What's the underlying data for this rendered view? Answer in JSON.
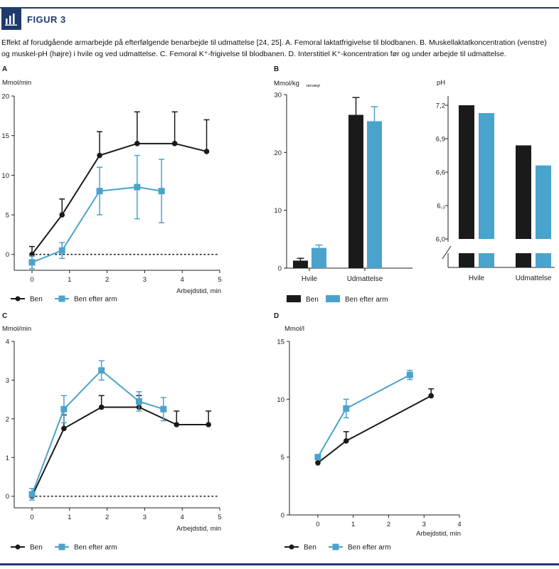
{
  "figure": {
    "title": "FIGUR 3",
    "caption": "Effekt af forudgående armarbejde på efterfølgende benarbejde til udmattelse [24, 25]. A. Femoral laktatfrigivelse til blodbanen. B. Muskellaktatkoncentration (venstre) og muskel-pH (højre) i hvile og ved udmattelse. C. Femoral K⁺-frigivelse til blodbanen. D. Interstitiel K⁺-koncentration før og under arbejde til udmattelse.",
    "colors": {
      "ben": "#1a1a1a",
      "ben_efter_arm": "#4aa3cc",
      "accent": "#1f3a6e"
    },
    "icon": "bar-chart-icon"
  },
  "chart_data": [
    {
      "panel": "A",
      "type": "line",
      "ylabel": "Mmol/min",
      "xlabel": "Arbejdstid, min",
      "xlim": [
        0,
        5
      ],
      "ylim": [
        -2,
        20
      ],
      "xticks": [
        0,
        1,
        2,
        3,
        4,
        5
      ],
      "yticks": [
        0,
        5,
        10,
        15,
        20
      ],
      "zero_line": "dotted",
      "series": [
        {
          "name": "Ben",
          "marker": "circle",
          "x": [
            0,
            0.8,
            1.8,
            2.8,
            3.8,
            4.65
          ],
          "y": [
            0,
            5,
            12.5,
            14,
            14,
            13
          ],
          "err": [
            1,
            2,
            3,
            4,
            4,
            4
          ]
        },
        {
          "name": "Ben efter arm",
          "marker": "square",
          "x": [
            0,
            0.8,
            1.8,
            2.8,
            3.45
          ],
          "y": [
            -1,
            0.5,
            8,
            8.5,
            8
          ],
          "err": [
            0.8,
            1,
            3,
            4,
            4
          ]
        }
      ],
      "legend": [
        "Ben",
        "Ben efter arm"
      ]
    },
    {
      "panel": "B",
      "type": "bar",
      "ylabel": "Mmol/kg",
      "ylabel_sub": "tørvægt",
      "categories": [
        "Hvile",
        "Udmattelse"
      ],
      "ylim": [
        0,
        30
      ],
      "yticks": [
        0,
        10,
        20,
        30
      ],
      "series": [
        {
          "name": "Ben",
          "values": [
            1.3,
            26.5
          ],
          "err": [
            0.4,
            3
          ]
        },
        {
          "name": "Ben efter arm",
          "values": [
            3.5,
            25.4
          ],
          "err": [
            0.5,
            2.5
          ]
        }
      ],
      "legend": [
        "Ben",
        "Ben efter arm"
      ]
    },
    {
      "panel": "B (pH)",
      "type": "bar",
      "ylabel": "pH",
      "categories": [
        "Hvile",
        "Udmattelse"
      ],
      "ylim": [
        6.0,
        7.2
      ],
      "yticks": [
        "7,2",
        "6,9",
        "6,6",
        "6,₃",
        "6,0"
      ],
      "axis_break": true,
      "series": [
        {
          "name": "Ben",
          "values": [
            7.2,
            6.84
          ]
        },
        {
          "name": "Ben efter arm",
          "values": [
            7.13,
            6.66
          ]
        }
      ]
    },
    {
      "panel": "C",
      "type": "line",
      "ylabel": "Mmol/min",
      "xlabel": "Arbejdstid, min",
      "xlim": [
        0,
        5
      ],
      "ylim": [
        -0.3,
        4
      ],
      "xticks": [
        0,
        1,
        2,
        3,
        4,
        5
      ],
      "yticks": [
        0,
        1,
        2,
        3,
        4
      ],
      "zero_line": "dotted",
      "series": [
        {
          "name": "Ben",
          "marker": "circle",
          "x": [
            0,
            0.85,
            1.85,
            2.85,
            3.85,
            4.7
          ],
          "y": [
            0,
            1.75,
            2.3,
            2.3,
            1.85,
            1.85
          ],
          "err": [
            0.1,
            0.35,
            0.3,
            0.3,
            0.35,
            0.35
          ]
        },
        {
          "name": "Ben efter arm",
          "marker": "square",
          "x": [
            0,
            0.85,
            1.85,
            2.85,
            3.5
          ],
          "y": [
            0.05,
            2.25,
            3.25,
            2.45,
            2.25
          ],
          "err": [
            0.15,
            0.35,
            0.25,
            0.25,
            0.3
          ]
        }
      ],
      "legend": [
        "Ben",
        "Ben efter arm"
      ]
    },
    {
      "panel": "D",
      "type": "line",
      "ylabel": "Mmol/l",
      "xlabel": "Arbejdstid, min",
      "xlim": [
        -0.3,
        4
      ],
      "ylim": [
        0,
        15
      ],
      "xticks": [
        0,
        1,
        2,
        3,
        4
      ],
      "yticks": [
        0,
        5,
        10,
        15
      ],
      "series": [
        {
          "name": "Ben",
          "marker": "circle",
          "x": [
            0,
            0.8,
            3.2
          ],
          "y": [
            4.5,
            6.4,
            10.3
          ],
          "err": [
            0,
            0.8,
            0.6
          ]
        },
        {
          "name": "Ben efter arm",
          "marker": "square",
          "x": [
            0,
            0.8,
            2.6
          ],
          "y": [
            5,
            9.2,
            12.1
          ],
          "err": [
            0,
            0.8,
            0.4
          ]
        }
      ],
      "legend": [
        "Ben",
        "Ben efter arm"
      ]
    }
  ]
}
